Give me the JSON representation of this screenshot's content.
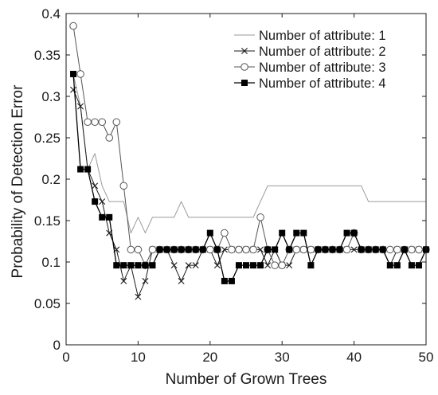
{
  "chart_data": {
    "type": "line",
    "title": "",
    "xlabel": "Number of Grown Trees",
    "ylabel": "Probability of Detection Error",
    "xlim": [
      0,
      50
    ],
    "ylim": [
      0,
      0.4
    ],
    "xticks": [
      0,
      10,
      20,
      30,
      40,
      50
    ],
    "yticks": [
      0,
      0.05,
      0.1,
      0.15,
      0.2,
      0.25,
      0.3,
      0.35,
      0.4
    ],
    "xtick_labels": [
      "0",
      "10",
      "20",
      "30",
      "40",
      "50"
    ],
    "ytick_labels": [
      "0",
      "0.05",
      "0.1",
      "0.15",
      "0.2",
      "0.25",
      "0.3",
      "0.35",
      "0.4"
    ],
    "grid": false,
    "legend_position": "top-right",
    "x": [
      1,
      2,
      3,
      4,
      5,
      6,
      7,
      8,
      9,
      10,
      11,
      12,
      13,
      14,
      15,
      16,
      17,
      18,
      19,
      20,
      21,
      22,
      23,
      24,
      25,
      26,
      27,
      28,
      29,
      30,
      31,
      32,
      33,
      34,
      35,
      36,
      37,
      38,
      39,
      40,
      41,
      42,
      43,
      44,
      45,
      46,
      47,
      48,
      49,
      50
    ],
    "series": [
      {
        "name": "Number of attribute: 1",
        "marker": "none",
        "color": "#9a9a9a",
        "values": [
          0.327,
          0.288,
          0.212,
          0.231,
          0.192,
          0.173,
          0.173,
          0.173,
          0.135,
          0.154,
          0.135,
          0.154,
          0.154,
          0.154,
          0.154,
          0.173,
          0.154,
          0.154,
          0.154,
          0.154,
          0.154,
          0.154,
          0.154,
          0.154,
          0.154,
          0.154,
          0.173,
          0.192,
          0.192,
          0.192,
          0.192,
          0.192,
          0.192,
          0.192,
          0.192,
          0.192,
          0.192,
          0.192,
          0.192,
          0.192,
          0.192,
          0.173,
          0.173,
          0.173,
          0.173,
          0.173,
          0.173,
          0.173,
          0.173,
          0.173
        ]
      },
      {
        "name": "Number of attribute: 2",
        "marker": "x",
        "color": "#1a1a1a",
        "values": [
          0.308,
          0.288,
          0.212,
          0.192,
          0.173,
          0.135,
          0.115,
          0.077,
          0.096,
          0.058,
          0.077,
          0.115,
          0.115,
          0.115,
          0.096,
          0.077,
          0.096,
          0.096,
          0.115,
          0.115,
          0.096,
          0.115,
          0.115,
          0.115,
          0.115,
          0.115,
          0.115,
          0.096,
          0.115,
          0.096,
          0.096,
          0.115,
          0.115,
          0.115,
          0.115,
          0.115,
          0.115,
          0.115,
          0.115,
          0.115,
          0.115,
          0.115,
          0.115,
          0.115,
          0.096,
          0.115,
          0.115,
          0.115,
          0.115,
          0.115
        ]
      },
      {
        "name": "Number of attribute: 3",
        "marker": "circle",
        "color": "#555555",
        "values": [
          0.385,
          0.327,
          0.269,
          0.269,
          0.269,
          0.25,
          0.269,
          0.192,
          0.115,
          0.115,
          0.096,
          0.115,
          0.115,
          0.115,
          0.115,
          0.115,
          0.115,
          0.115,
          0.115,
          0.115,
          0.115,
          0.135,
          0.115,
          0.115,
          0.115,
          0.115,
          0.154,
          0.115,
          0.096,
          0.096,
          0.115,
          0.115,
          0.115,
          0.115,
          0.115,
          0.115,
          0.115,
          0.115,
          0.115,
          0.135,
          0.115,
          0.115,
          0.115,
          0.115,
          0.115,
          0.115,
          0.115,
          0.115,
          0.115,
          0.115
        ]
      },
      {
        "name": "Number of attribute: 4",
        "marker": "square",
        "color": "#000000",
        "values": [
          0.327,
          0.212,
          0.212,
          0.173,
          0.154,
          0.154,
          0.096,
          0.096,
          0.096,
          0.096,
          0.096,
          0.096,
          0.115,
          0.115,
          0.115,
          0.115,
          0.115,
          0.115,
          0.115,
          0.135,
          0.115,
          0.077,
          0.077,
          0.096,
          0.096,
          0.096,
          0.096,
          0.115,
          0.115,
          0.135,
          0.115,
          0.135,
          0.135,
          0.096,
          0.115,
          0.115,
          0.115,
          0.115,
          0.135,
          0.135,
          0.115,
          0.115,
          0.115,
          0.115,
          0.096,
          0.096,
          0.115,
          0.096,
          0.096,
          0.115
        ]
      }
    ]
  }
}
